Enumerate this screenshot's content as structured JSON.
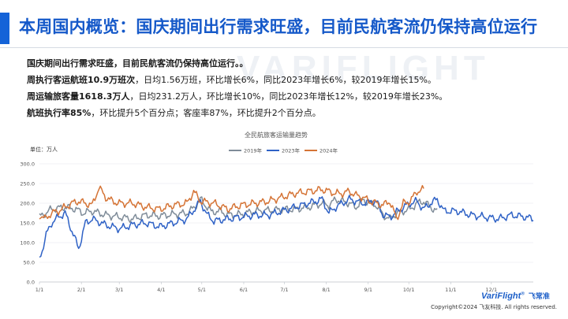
{
  "header": {
    "title": "本周国内概览：国庆期间出行需求旺盛，目前民航客流仍保持高位运行"
  },
  "summary": {
    "line1": "国庆期间出行需求旺盛，目前民航客流仍保持高位运行。。",
    "line2_bold": "周执行客运航班10.9万班次",
    "line2_rest": "，日均1.56万班，环比增长6%，同比2023年增长6%，较2019年增长15%。",
    "line3_bold": "周运输旅客量1618.3万人",
    "line3_rest": "，日均231.2万人，环比增长10%，同比2023年增长12%，较2019年增长23%。",
    "line4_bold": "航班执行率85%",
    "line4_rest": "，环比提升5个百分点；客座率87%，环比提升2个百分点。"
  },
  "watermark": "VARIFLIGHT",
  "brand": {
    "name": "VariFlight",
    "mark": "®",
    "cn": "飞常准"
  },
  "footer": {
    "copyright": "Copyright©2024 飞友科技. All rights reserved."
  },
  "chart_data": {
    "type": "line",
    "title": "全民航旅客运输量趋势",
    "unit_label": "单位：万人",
    "ylim": [
      0,
      300
    ],
    "yticks": [
      "0.0",
      "50.0",
      "100.0",
      "150.0",
      "200.0",
      "250.0",
      "300.0"
    ],
    "xticks": [
      "1/1",
      "2/1",
      "3/1",
      "4/1",
      "5/1",
      "6/1",
      "7/1",
      "8/1",
      "9/1",
      "10/1",
      "11/1",
      "12/1"
    ],
    "grid": true,
    "legend_position": "top",
    "series": [
      {
        "name": "2019年",
        "color": "#7f8c99",
        "x_days": [
          1,
          10,
          20,
          28,
          33,
          40,
          50,
          60,
          70,
          80,
          90,
          100,
          110,
          115,
          120,
          128,
          135,
          140,
          150,
          160,
          170,
          180,
          190,
          200,
          210,
          215,
          220,
          225,
          230,
          235,
          240,
          245,
          250,
          255,
          260,
          265,
          270,
          275,
          280,
          285,
          290,
          295
        ],
        "values": [
          165,
          185,
          190,
          185,
          175,
          180,
          170,
          165,
          160,
          170,
          168,
          172,
          175,
          188,
          210,
          178,
          180,
          170,
          172,
          180,
          182,
          184,
          185,
          190,
          200,
          195,
          210,
          205,
          200,
          190,
          208,
          200,
          195,
          170,
          160,
          175,
          180,
          185,
          200,
          205,
          190,
          180
        ]
      },
      {
        "name": "2023年",
        "color": "#2f62c6",
        "x_days": [
          1,
          3,
          6,
          10,
          15,
          20,
          25,
          30,
          35,
          40,
          50,
          60,
          70,
          80,
          90,
          100,
          110,
          120,
          125,
          130,
          140,
          150,
          160,
          170,
          180,
          190,
          200,
          210,
          215,
          220,
          225,
          230,
          240,
          250,
          255,
          260,
          270,
          275,
          280,
          285,
          290,
          295,
          300,
          310,
          320,
          330,
          340,
          350,
          360,
          366
        ],
        "values": [
          60,
          80,
          120,
          150,
          165,
          175,
          130,
          85,
          150,
          160,
          145,
          135,
          145,
          150,
          140,
          150,
          160,
          205,
          170,
          155,
          160,
          165,
          170,
          170,
          180,
          190,
          200,
          210,
          175,
          190,
          200,
          210,
          200,
          205,
          170,
          165,
          190,
          200,
          205,
          185,
          200,
          210,
          180,
          180,
          170,
          165,
          160,
          170,
          165,
          160
        ]
      },
      {
        "name": "2024年",
        "color": "#d57436",
        "x_days": [
          1,
          5,
          10,
          15,
          20,
          25,
          30,
          40,
          45,
          50,
          55,
          60,
          70,
          80,
          90,
          100,
          110,
          115,
          120,
          130,
          140,
          150,
          160,
          170,
          180,
          190,
          200,
          210,
          220,
          225,
          230,
          235,
          240,
          245,
          250,
          255,
          260,
          265,
          270,
          275,
          280,
          285
        ],
        "values": [
          170,
          160,
          175,
          180,
          190,
          200,
          205,
          195,
          240,
          215,
          205,
          200,
          200,
          190,
          185,
          195,
          200,
          230,
          205,
          200,
          185,
          195,
          200,
          205,
          215,
          225,
          230,
          235,
          225,
          225,
          230,
          220,
          215,
          205,
          200,
          195,
          205,
          160,
          200,
          205,
          230,
          235
        ]
      }
    ]
  }
}
